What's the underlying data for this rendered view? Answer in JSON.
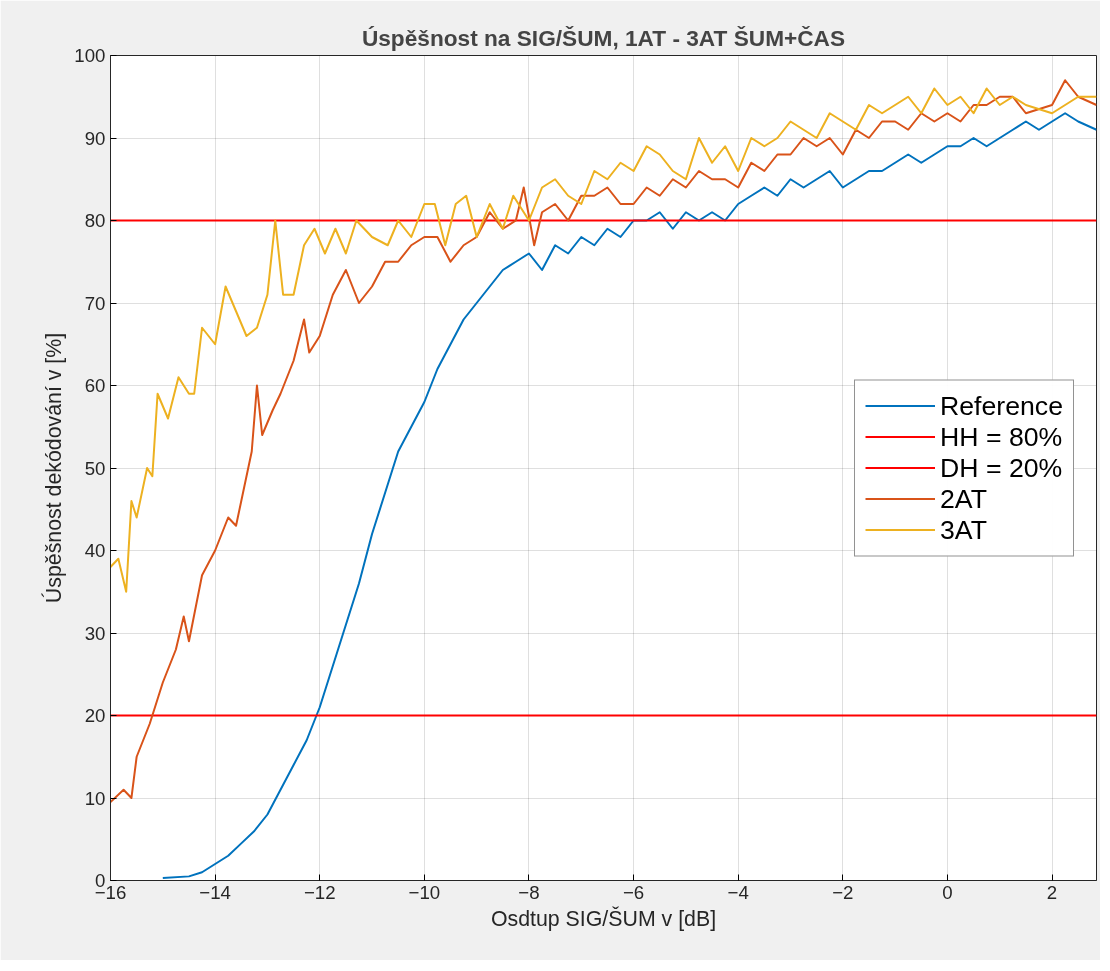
{
  "chart_data": {
    "type": "line",
    "title": "Úspěšnost na SIG/ŠUM, 1AT - 3AT ŠUM+ČAS",
    "xlabel": "Osdtup SIG/ŠUM v [dB]",
    "ylabel": "Úspěšnost dekódování v [%]",
    "xlim": [
      -16,
      2.85
    ],
    "ylim": [
      0,
      100
    ],
    "xticks": [
      -16,
      -14,
      -12,
      -10,
      -8,
      -6,
      -4,
      -2,
      0,
      2
    ],
    "yticks": [
      0,
      10,
      20,
      30,
      40,
      50,
      60,
      70,
      80,
      90,
      100
    ],
    "grid": true,
    "legend": "right",
    "line_style": "solid",
    "marker": "none",
    "series": [
      {
        "name": "Reference",
        "color": "#0072bd",
        "x": [
          -15,
          -14.5,
          -14.25,
          -14,
          -13.75,
          -13.5,
          -13.25,
          -13,
          -12.75,
          -12.5,
          -12.25,
          -12,
          -11.75,
          -11.5,
          -11.25,
          -11,
          -10.75,
          -10.5,
          -10.25,
          -10,
          -9.75,
          -9.5,
          -9.25,
          -9,
          -8.75,
          -8.5,
          -8.25,
          -8,
          -7.75,
          -7.5,
          -7.25,
          -7,
          -6.75,
          -6.5,
          -6.25,
          -6,
          -5.75,
          -5.5,
          -5.25,
          -5,
          -4.75,
          -4.5,
          -4.25,
          -4,
          -3.75,
          -3.5,
          -3.25,
          -3,
          -2.75,
          -2.5,
          -2.25,
          -2,
          -1.75,
          -1.5,
          -1.25,
          -1,
          -0.75,
          -0.5,
          -0.25,
          0,
          0.25,
          0.5,
          0.75,
          1,
          1.25,
          1.5,
          1.75,
          2,
          2.25,
          2.5,
          2.85
        ],
        "values": [
          0.3,
          0.5,
          1,
          2,
          3,
          4.5,
          6,
          8,
          11,
          14,
          17,
          21,
          26,
          31,
          36,
          42,
          47,
          52,
          55,
          58,
          62,
          65,
          68,
          70,
          72,
          74,
          75,
          76,
          74,
          77,
          76,
          78,
          77,
          79,
          78,
          80,
          80,
          81,
          79,
          81,
          80,
          81,
          80,
          82,
          83,
          84,
          83,
          85,
          84,
          85,
          86,
          84,
          85,
          86,
          86,
          87,
          88,
          87,
          88,
          89,
          89,
          90,
          89,
          90,
          91,
          92,
          91,
          92,
          93,
          92,
          91
        ]
      },
      {
        "name": "HH = 80%",
        "color": "#ff0000",
        "x": [
          -16,
          2.85
        ],
        "values": [
          80,
          80
        ]
      },
      {
        "name": "DH = 20%",
        "color": "#ff0000",
        "x": [
          -16,
          2.85
        ],
        "values": [
          20,
          20
        ]
      },
      {
        "name": "2AT",
        "color": "#d95319",
        "x": [
          -16,
          -15.75,
          -15.6,
          -15.5,
          -15.25,
          -15,
          -14.75,
          -14.6,
          -14.5,
          -14.25,
          -14,
          -13.75,
          -13.6,
          -13.5,
          -13.3,
          -13.2,
          -13.1,
          -12.9,
          -12.75,
          -12.5,
          -12.3,
          -12.2,
          -12,
          -11.75,
          -11.5,
          -11.25,
          -11,
          -10.75,
          -10.5,
          -10.25,
          -10,
          -9.75,
          -9.5,
          -9.25,
          -9,
          -8.75,
          -8.5,
          -8.25,
          -8.1,
          -7.9,
          -7.75,
          -7.5,
          -7.25,
          -7,
          -6.75,
          -6.5,
          -6.25,
          -6,
          -5.75,
          -5.5,
          -5.25,
          -5,
          -4.75,
          -4.5,
          -4.25,
          -4,
          -3.75,
          -3.5,
          -3.25,
          -3,
          -2.75,
          -2.5,
          -2.25,
          -2,
          -1.75,
          -1.5,
          -1.25,
          -1,
          -0.75,
          -0.5,
          -0.25,
          0,
          0.25,
          0.5,
          0.75,
          1,
          1.25,
          1.5,
          2,
          2.25,
          2.5,
          2.85
        ],
        "values": [
          9.5,
          11,
          10,
          15,
          19,
          24,
          28,
          32,
          29,
          37,
          40,
          44,
          43,
          46,
          52,
          60,
          54,
          57,
          59,
          63,
          68,
          64,
          66,
          71,
          74,
          70,
          72,
          75,
          75,
          77,
          78,
          78,
          75,
          77,
          78,
          81,
          79,
          80,
          84,
          77,
          81,
          82,
          80,
          83,
          83,
          84,
          82,
          82,
          84,
          83,
          85,
          84,
          86,
          85,
          85,
          84,
          87,
          86,
          88,
          88,
          90,
          89,
          90,
          88,
          91,
          90,
          92,
          92,
          91,
          93,
          92,
          93,
          92,
          94,
          94,
          95,
          95,
          93,
          94,
          97,
          95,
          94
        ]
      },
      {
        "name": "3AT",
        "color": "#edb120",
        "x": [
          -16,
          -15.85,
          -15.7,
          -15.6,
          -15.5,
          -15.3,
          -15.2,
          -15.1,
          -14.9,
          -14.7,
          -14.5,
          -14.4,
          -14.25,
          -14,
          -13.8,
          -13.6,
          -13.4,
          -13.2,
          -13,
          -12.85,
          -12.7,
          -12.5,
          -12.3,
          -12.1,
          -11.9,
          -11.7,
          -11.5,
          -11.3,
          -11,
          -10.7,
          -10.5,
          -10.25,
          -10,
          -9.8,
          -9.6,
          -9.4,
          -9.2,
          -9,
          -8.75,
          -8.5,
          -8.3,
          -8,
          -7.75,
          -7.5,
          -7.25,
          -7,
          -6.75,
          -6.5,
          -6.25,
          -6,
          -5.75,
          -5.5,
          -5.25,
          -5,
          -4.75,
          -4.5,
          -4.25,
          -4,
          -3.75,
          -3.5,
          -3.25,
          -3,
          -2.75,
          -2.5,
          -2.25,
          -2,
          -1.75,
          -1.5,
          -1.25,
          -1,
          -0.75,
          -0.5,
          -0.25,
          0,
          0.25,
          0.5,
          0.75,
          1,
          1.25,
          1.5,
          2,
          2.5,
          2.85
        ],
        "values": [
          38,
          39,
          35,
          46,
          44,
          50,
          49,
          59,
          56,
          61,
          59,
          59,
          67,
          65,
          72,
          69,
          66,
          67,
          71,
          80,
          71,
          71,
          77,
          79,
          76,
          79,
          76,
          80,
          78,
          77,
          80,
          78,
          82,
          82,
          77,
          82,
          83,
          78,
          82,
          79,
          83,
          80,
          84,
          85,
          83,
          82,
          86,
          85,
          87,
          86,
          89,
          88,
          86,
          85,
          90,
          87,
          89,
          86,
          90,
          89,
          90,
          92,
          91,
          90,
          93,
          92,
          91,
          94,
          93,
          94,
          95,
          93,
          96,
          94,
          95,
          93,
          96,
          94,
          95,
          94,
          93,
          95,
          95
        ]
      }
    ]
  }
}
